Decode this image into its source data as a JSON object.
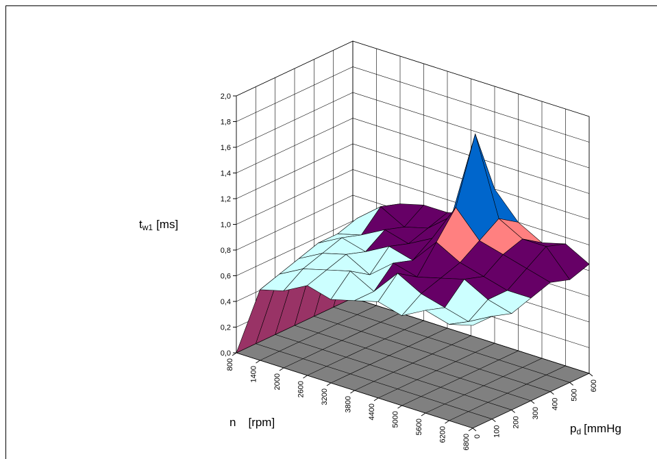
{
  "chart_data": {
    "type": "surface3d",
    "z_label": {
      "main": "t",
      "sub": "w1",
      "unit": "[ms]"
    },
    "x_label": {
      "main": "n",
      "unit": "[rpm]"
    },
    "y_label": {
      "main": "p",
      "sub": "d",
      "unit": "[mmHg"
    },
    "x": [
      800,
      1400,
      2000,
      2600,
      3200,
      3800,
      4400,
      5000,
      5600,
      6200,
      6800
    ],
    "y": [
      0,
      100,
      200,
      300,
      400,
      500,
      600
    ],
    "values": [
      [
        0,
        0.55,
        0.6,
        0.7,
        0.65,
        0.7,
        0.75,
        0.7,
        0.8,
        0.75,
        0.8
      ],
      [
        0,
        0.6,
        0.7,
        0.75,
        0.8,
        0.7,
        0.9,
        0.8,
        0.75,
        0.7,
        0.8
      ],
      [
        0,
        0.65,
        0.75,
        0.8,
        0.7,
        0.85,
        0.8,
        0.85,
        0.9,
        0.8,
        0.75
      ],
      [
        0,
        0.7,
        0.8,
        0.75,
        0.85,
        0.8,
        1.0,
        0.9,
        0.85,
        0.8,
        0.8
      ],
      [
        0,
        0.7,
        0.75,
        0.85,
        0.8,
        0.9,
        1.2,
        1.0,
        0.95,
        0.9,
        0.85
      ],
      [
        0,
        0.75,
        0.9,
        0.8,
        0.85,
        1.0,
        1.7,
        1.1,
        1.0,
        1.0,
        0.8
      ],
      [
        0,
        0.7,
        0.85,
        0.9,
        0.9,
        0.95,
        1.2,
        1.0,
        0.9,
        0.95,
        0.85
      ]
    ],
    "zlim": [
      0,
      2
    ],
    "zticks": [
      {
        "value": 0,
        "label": "0,0"
      },
      {
        "value": 0.2,
        "label": "0,2"
      },
      {
        "value": 0.4,
        "label": "0,4"
      },
      {
        "value": 0.6,
        "label": "0,6"
      },
      {
        "value": 0.8,
        "label": "0,8"
      },
      {
        "value": 1,
        "label": "1,0"
      },
      {
        "value": 1.2,
        "label": "1,2"
      },
      {
        "value": 1.4,
        "label": "1,4"
      },
      {
        "value": 1.6,
        "label": "1,6"
      },
      {
        "value": 1.8,
        "label": "1,8"
      },
      {
        "value": 2,
        "label": "2,0"
      }
    ],
    "band_colors": [
      "#9999ff",
      "#993366",
      "#ffffcc",
      "#ccffff",
      "#660066",
      "#ff8080",
      "#0066cc",
      "#ccccff",
      "#000080",
      "#ff00ff"
    ],
    "floor_color": "#808080",
    "grid": true
  }
}
